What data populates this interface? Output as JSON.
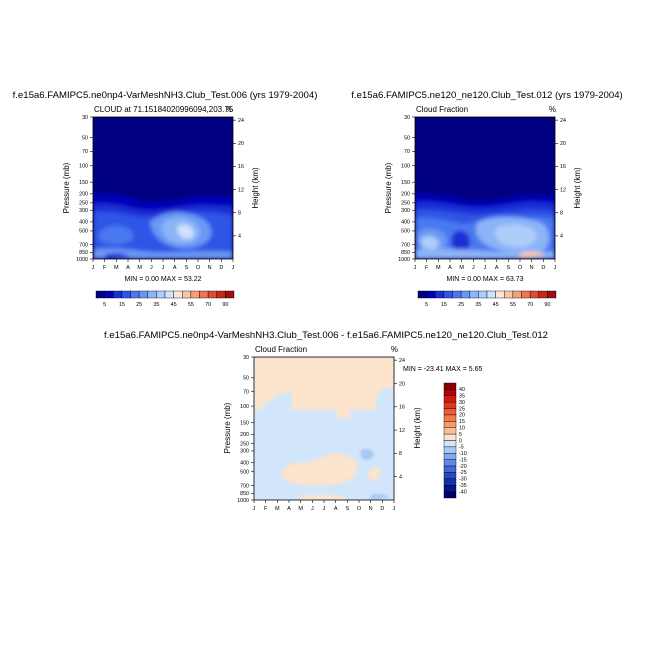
{
  "chart_data": [
    {
      "type": "heatmap",
      "title": "f.e15a6.FAMIPC5.ne0np4-VarMeshNH3.Club_Test.006 (yrs 1979-2004)",
      "subtitle_left": "CLOUD at 71.15184020996094,203.75",
      "subtitle_right": "%",
      "xlabel": "",
      "ylabel": "Pressure (mb)",
      "ylabel_right": "Height (km)",
      "x_ticks": [
        "J",
        "F",
        "M",
        "A",
        "M",
        "J",
        "J",
        "A",
        "S",
        "O",
        "N",
        "D",
        "J"
      ],
      "y_ticks": [
        "30",
        "50",
        "70",
        "100",
        "150",
        "200",
        "250",
        "300",
        "400",
        "500",
        "700",
        "850",
        "1000"
      ],
      "y2_ticks": [
        "24",
        "20",
        "16",
        "12",
        "8",
        "4"
      ],
      "stats": "MIN =   0.00 MAX =  53.22",
      "colorbar_labels": [
        "5",
        "15",
        "25",
        "35",
        "45",
        "55",
        "70",
        "90"
      ],
      "colorbar_levels": [
        5,
        10,
        15,
        20,
        25,
        30,
        35,
        40,
        45,
        50,
        55,
        60,
        70,
        80,
        90
      ]
    },
    {
      "type": "heatmap",
      "title": "f.e15a6.FAMIPC5.ne120_ne120.Club_Test.012 (yrs 1979-2004)",
      "subtitle_left": "Cloud Fraction",
      "subtitle_right": "%",
      "xlabel": "",
      "ylabel": "Pressure (mb)",
      "ylabel_right": "Height (km)",
      "x_ticks": [
        "J",
        "F",
        "M",
        "A",
        "M",
        "J",
        "J",
        "A",
        "S",
        "O",
        "N",
        "D",
        "J"
      ],
      "y_ticks": [
        "30",
        "50",
        "70",
        "100",
        "150",
        "200",
        "250",
        "300",
        "400",
        "500",
        "700",
        "850",
        "1000"
      ],
      "y2_ticks": [
        "24",
        "20",
        "16",
        "12",
        "8",
        "4"
      ],
      "stats": "MIN =   0.00 MAX =  63.73",
      "colorbar_labels": [
        "5",
        "15",
        "25",
        "35",
        "45",
        "55",
        "70",
        "90"
      ],
      "colorbar_levels": [
        5,
        10,
        15,
        20,
        25,
        30,
        35,
        40,
        45,
        50,
        55,
        60,
        70,
        80,
        90
      ]
    },
    {
      "type": "heatmap",
      "title": "f.e15a6.FAMIPC5.ne0np4-VarMeshNH3.Club_Test.006 - f.e15a6.FAMIPC5.ne120_ne120.Club_Test.012",
      "subtitle_left": "Cloud Fraction",
      "subtitle_right": "%",
      "xlabel": "",
      "ylabel": "Pressure (mb)",
      "ylabel_right": "Height (km)",
      "x_ticks": [
        "J",
        "F",
        "M",
        "A",
        "M",
        "J",
        "J",
        "A",
        "S",
        "O",
        "N",
        "D",
        "J"
      ],
      "y_ticks": [
        "30",
        "50",
        "70",
        "100",
        "150",
        "200",
        "250",
        "300",
        "400",
        "500",
        "700",
        "850",
        "1000"
      ],
      "y2_ticks": [
        "24",
        "20",
        "16",
        "12",
        "8",
        "4"
      ],
      "stats": "MIN = -23.41 MAX =   5.65",
      "colorbar_labels": [
        "40",
        "35",
        "30",
        "25",
        "20",
        "15",
        "10",
        "5",
        "0",
        "-5",
        "-10",
        "-15",
        "-20",
        "-25",
        "-30",
        "-35",
        "-40"
      ],
      "colorbar_levels": [
        40,
        35,
        30,
        25,
        20,
        15,
        10,
        5,
        0,
        -5,
        -10,
        -15,
        -20,
        -25,
        -30,
        -35,
        -40
      ]
    }
  ],
  "palettes": {
    "abs": [
      "#000080",
      "#0000b8",
      "#1a2fd6",
      "#2e55e6",
      "#4a78ef",
      "#6b98f5",
      "#8cb4f8",
      "#aecdfa",
      "#cfe2fc",
      "#fbe5d6",
      "#fbc6a6",
      "#f6a078",
      "#ec7752",
      "#dc4d2f",
      "#c5251a",
      "#9a0f0f"
    ],
    "diff": [
      "#8b0000",
      "#b3000f",
      "#d11a14",
      "#e3371c",
      "#ef5a30",
      "#f47a4c",
      "#f89a6c",
      "#fbbf98",
      "#fde4cc",
      "#d2e6fb",
      "#a9c8f5",
      "#84a8ee",
      "#6088e4",
      "#3f68d8",
      "#2848c6",
      "#1530aa",
      "#06178a",
      "#000070"
    ]
  }
}
